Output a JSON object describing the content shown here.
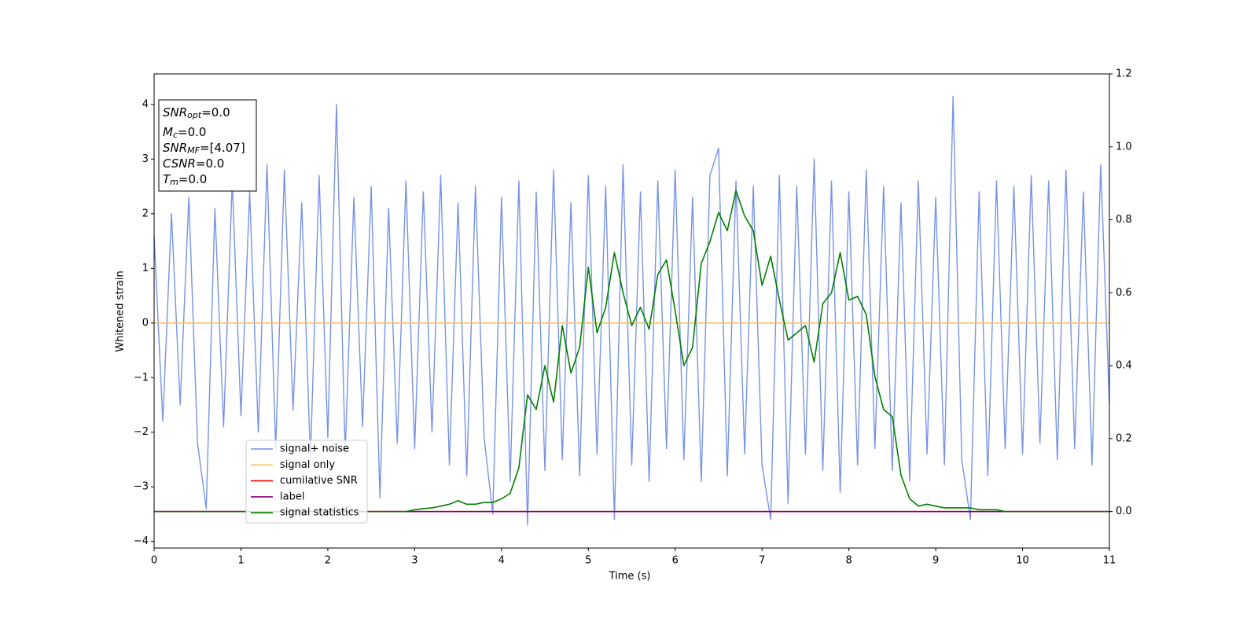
{
  "chart_data": {
    "type": "line",
    "xlabel": "Time (s)",
    "ylabel": "Whitened strain",
    "xlim": [
      0,
      11
    ],
    "xticks": [
      0,
      1,
      2,
      3,
      4,
      5,
      6,
      7,
      8,
      9,
      10,
      11
    ],
    "ylim": [
      -4.12,
      4.56
    ],
    "yticks": [
      {
        "value": -4,
        "label": "−4"
      },
      {
        "value": -3,
        "label": "−3"
      },
      {
        "value": -2,
        "label": "−2"
      },
      {
        "value": -1,
        "label": "−1"
      },
      0,
      1,
      2,
      3,
      4
    ],
    "y2lim": [
      -0.1,
      1.2
    ],
    "y2ticks": [
      {
        "value": 0,
        "label": "0.0"
      },
      0.2,
      0.4,
      0.6,
      0.8,
      {
        "value": 1,
        "label": "1.0"
      },
      1.2
    ],
    "legend": "lower left",
    "annotation": [
      {
        "symbol": "SNR",
        "subscript": "opt",
        "text": "=0.0"
      },
      {
        "symbol": "M",
        "subscript": "c",
        "text": "=0.0"
      },
      {
        "symbol": "SNR",
        "subscript": "MF",
        "text": "=[4.07]"
      },
      {
        "symbol": "CSNR",
        "text": "=0.0"
      },
      {
        "symbol": "T",
        "subscript": "m",
        "text": "=0.0"
      }
    ],
    "x": [
      0,
      0.1,
      0.2,
      0.3,
      0.4,
      0.5,
      0.6,
      0.7,
      0.8,
      0.9,
      1,
      1.1,
      1.2,
      1.3,
      1.4,
      1.5,
      1.6,
      1.7,
      1.8,
      1.9,
      2,
      2.1,
      2.2,
      2.3,
      2.4,
      2.5,
      2.6,
      2.7,
      2.8,
      2.9,
      3,
      3.1,
      3.2,
      3.3,
      3.4,
      3.5,
      3.6,
      3.7,
      3.8,
      3.9,
      4,
      4.1,
      4.2,
      4.3,
      4.4,
      4.5,
      4.6,
      4.7,
      4.8,
      4.9,
      5,
      5.1,
      5.2,
      5.3,
      5.4,
      5.5,
      5.6,
      5.7,
      5.8,
      5.9,
      6,
      6.1,
      6.2,
      6.3,
      6.4,
      6.5,
      6.6,
      6.7,
      6.8,
      6.9,
      7,
      7.1,
      7.2,
      7.3,
      7.4,
      7.5,
      7.6,
      7.7,
      7.8,
      7.9,
      8,
      8.1,
      8.2,
      8.3,
      8.4,
      8.5,
      8.6,
      8.7,
      8.8,
      8.9,
      9,
      9.1,
      9.2,
      9.3,
      9.4,
      9.5,
      9.6,
      9.7,
      9.8,
      9.9,
      10,
      10.1,
      10.2,
      10.3,
      10.4,
      10.5,
      10.6,
      10.7,
      10.8,
      10.9,
      11
    ],
    "series": [
      {
        "name": "signal+ noise",
        "color": "#7893e6",
        "values": [
          1.6,
          -1.8,
          2.0,
          -1.5,
          2.3,
          -2.2,
          -3.4,
          2.1,
          -1.9,
          2.6,
          -1.7,
          2.4,
          -2.0,
          2.9,
          -2.3,
          2.8,
          -1.6,
          2.2,
          -2.5,
          2.7,
          -2.1,
          4.0,
          -2.4,
          2.3,
          -1.9,
          2.5,
          -3.2,
          2.1,
          -2.2,
          2.6,
          -2.3,
          2.4,
          -2.0,
          2.7,
          -2.6,
          2.2,
          -2.8,
          2.5,
          -2.1,
          -3.5,
          2.3,
          -2.9,
          2.6,
          -3.7,
          2.4,
          -2.7,
          2.8,
          -2.5,
          2.2,
          -2.8,
          2.7,
          -2.4,
          2.5,
          -3.6,
          2.9,
          -2.6,
          2.4,
          -2.9,
          2.6,
          -2.3,
          2.8,
          -2.5,
          2.3,
          -2.9,
          2.7,
          3.2,
          -2.8,
          2.6,
          -2.4,
          2.5,
          -2.6,
          -3.6,
          2.7,
          -3.3,
          2.5,
          -2.4,
          3.0,
          -2.7,
          2.6,
          -3.1,
          2.4,
          -2.6,
          2.8,
          -2.3,
          2.5,
          -2.7,
          2.2,
          -2.9,
          2.6,
          -2.4,
          2.3,
          -2.6,
          4.15,
          -2.5,
          -3.6,
          2.4,
          -2.8,
          2.6,
          -2.3,
          2.5,
          -2.4,
          2.7,
          -2.2,
          2.6,
          -2.5,
          2.8,
          -2.3,
          2.4,
          -2.6,
          2.9,
          -1.5
        ]
      },
      {
        "name": "signal only",
        "color": "#f2c26b",
        "x": [
          0,
          11
        ],
        "values": [
          0,
          0
        ]
      },
      {
        "name": "cumilative SNR",
        "color": "#ff0000",
        "axis": "y2",
        "x": [
          0,
          11
        ],
        "values": [
          0,
          0
        ]
      },
      {
        "name": "label",
        "color": "#800080",
        "axis": "y2",
        "x": [
          0,
          11
        ],
        "values": [
          0,
          0
        ]
      },
      {
        "name": "signal statistics",
        "color": "#008000",
        "axis": "y2",
        "values": [
          0,
          0,
          0,
          0,
          0,
          0,
          0,
          0,
          0,
          0,
          0,
          0,
          0,
          0,
          0,
          0,
          0,
          0,
          0,
          0,
          0,
          0,
          0,
          0,
          0,
          0,
          0,
          0,
          0,
          0,
          0.005,
          0.008,
          0.01,
          0.015,
          0.02,
          0.03,
          0.02,
          0.02,
          0.025,
          0.025,
          0.035,
          0.05,
          0.12,
          0.32,
          0.28,
          0.4,
          0.3,
          0.51,
          0.38,
          0.45,
          0.67,
          0.49,
          0.56,
          0.71,
          0.6,
          0.51,
          0.56,
          0.5,
          0.65,
          0.69,
          0.55,
          0.4,
          0.45,
          0.68,
          0.74,
          0.82,
          0.77,
          0.88,
          0.81,
          0.77,
          0.62,
          0.7,
          0.58,
          0.47,
          0.49,
          0.51,
          0.41,
          0.57,
          0.6,
          0.71,
          0.58,
          0.59,
          0.54,
          0.37,
          0.28,
          0.26,
          0.1,
          0.035,
          0.015,
          0.02,
          0.015,
          0.01,
          0.01,
          0.01,
          0.01,
          0.005,
          0.005,
          0.005,
          0,
          0,
          0,
          0,
          0,
          0,
          0,
          0,
          0,
          0,
          0,
          0,
          0
        ]
      }
    ]
  }
}
